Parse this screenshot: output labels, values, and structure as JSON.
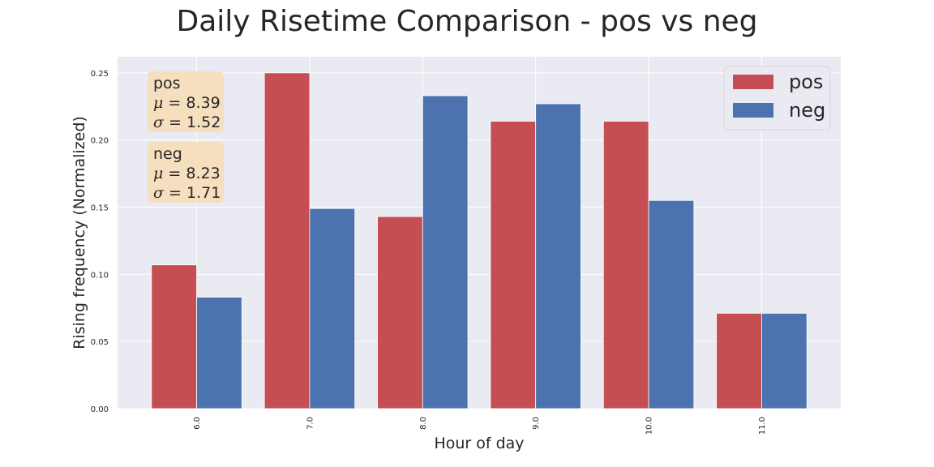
{
  "chart_data": {
    "type": "bar",
    "title": "Daily Risetime Comparison - pos vs neg",
    "xlabel": "Hour of day",
    "ylabel": "Rising frequency (Normalized)",
    "categories": [
      "6.0",
      "7.0",
      "8.0",
      "9.0",
      "10.0",
      "11.0"
    ],
    "series": [
      {
        "name": "pos",
        "color": "#c44e52",
        "values": [
          0.107,
          0.25,
          0.143,
          0.214,
          0.214,
          0.071
        ]
      },
      {
        "name": "neg",
        "color": "#4c72b0",
        "values": [
          0.083,
          0.149,
          0.233,
          0.227,
          0.155,
          0.071
        ]
      }
    ],
    "ylim": [
      0,
      0.262
    ],
    "yticks": [
      "0.00",
      "0.05",
      "0.10",
      "0.15",
      "0.20",
      "0.25"
    ],
    "ytick_values": [
      0,
      0.05,
      0.1,
      0.15,
      0.2,
      0.25
    ],
    "grid": true,
    "legend": "top-right",
    "background": "#eaeaf2",
    "annotations": [
      {
        "series": "pos",
        "mu_label": "μ",
        "mu": "8.39",
        "sigma_label": "σ",
        "sigma": "1.52"
      },
      {
        "series": "neg",
        "mu_label": "μ",
        "mu": "8.23",
        "sigma_label": "σ",
        "sigma": "1.71"
      }
    ],
    "annotation_color": "#f5dfbf"
  }
}
